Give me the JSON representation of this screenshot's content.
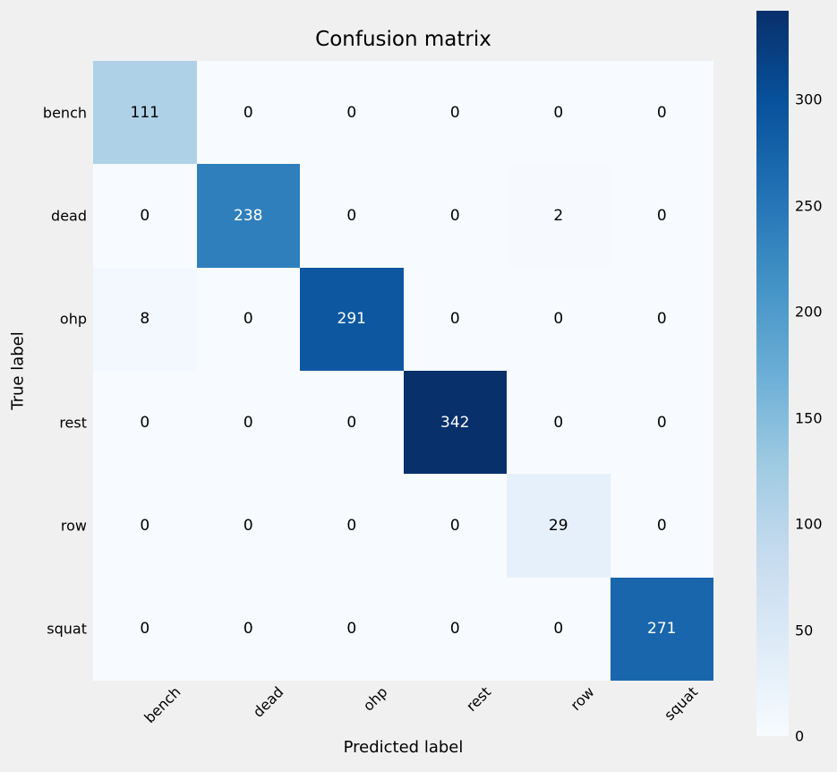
{
  "chart_data": {
    "type": "heatmap",
    "title": "Confusion matrix",
    "xlabel": "Predicted label",
    "ylabel": "True label",
    "x_categories": [
      "bench",
      "dead",
      "ohp",
      "rest",
      "row",
      "squat"
    ],
    "y_categories": [
      "bench",
      "dead",
      "ohp",
      "rest",
      "row",
      "squat"
    ],
    "matrix": [
      [
        111,
        0,
        0,
        0,
        0,
        0
      ],
      [
        0,
        238,
        0,
        0,
        2,
        0
      ],
      [
        8,
        0,
        291,
        0,
        0,
        0
      ],
      [
        0,
        0,
        0,
        342,
        0,
        0
      ],
      [
        0,
        0,
        0,
        0,
        29,
        0
      ],
      [
        0,
        0,
        0,
        0,
        0,
        271
      ]
    ],
    "vmin": 0,
    "vmax": 342,
    "colormap": "Blues",
    "colormap_stops": [
      [
        0.0,
        "#f7fbff"
      ],
      [
        0.125,
        "#deebf7"
      ],
      [
        0.25,
        "#c6dbef"
      ],
      [
        0.375,
        "#9ecae1"
      ],
      [
        0.5,
        "#6baed6"
      ],
      [
        0.625,
        "#4292c6"
      ],
      [
        0.75,
        "#2171b5"
      ],
      [
        0.875,
        "#08519c"
      ],
      [
        1.0,
        "#08306b"
      ]
    ],
    "colorbar_ticks": [
      0,
      50,
      100,
      150,
      200,
      250,
      300
    ],
    "legend_position": "right-colorbar",
    "grid": false,
    "colors": {
      "background": "#f0f0f0",
      "cell_text_dark": "#000000",
      "cell_text_light": "#ffffff",
      "tick_text": "#000000"
    }
  }
}
